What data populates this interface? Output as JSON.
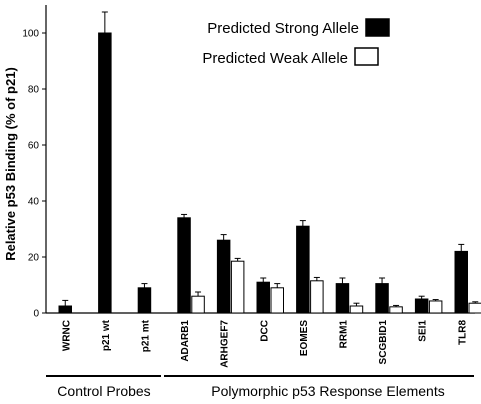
{
  "chart_data": {
    "type": "bar",
    "title": "",
    "xlabel": "",
    "ylabel": "Relative p53 Binding (% of p21)",
    "ylim": [
      0,
      110
    ],
    "yticks": [
      0,
      20,
      40,
      60,
      80,
      100
    ],
    "grid": false,
    "legend_position": "top-right",
    "categories": [
      "WRNC",
      "p21 wt",
      "p21 mt",
      "ADARB1",
      "ARHGEF7",
      "DCC",
      "EOMES",
      "RRM1",
      "SCGBID1",
      "SEI1",
      "TLR8"
    ],
    "series": [
      {
        "name": "Predicted Strong Allele",
        "color": "#000000",
        "values": [
          2.5,
          100,
          9,
          34,
          26,
          11,
          31,
          10.5,
          10.5,
          5,
          22
        ],
        "errors": [
          2,
          7.5,
          1.5,
          1.2,
          2,
          1.5,
          2,
          2,
          2,
          1,
          2.5
        ]
      },
      {
        "name": "Predicted Weak Allele",
        "color": "#ffffff",
        "values": [
          null,
          null,
          null,
          6,
          18.5,
          9,
          11.5,
          2.5,
          2.2,
          4.3,
          3.5
        ],
        "errors": [
          null,
          null,
          null,
          1.5,
          1,
          1.5,
          1.2,
          1,
          0.5,
          0.5,
          0.5
        ]
      }
    ],
    "groups": [
      {
        "label": "Control Probes",
        "categories": [
          "WRNC",
          "p21 wt",
          "p21 mt"
        ]
      },
      {
        "label": "Polymorphic p53 Response Elements",
        "categories": [
          "ADARB1",
          "ARHGEF7",
          "DCC",
          "EOMES",
          "RRM1",
          "SCGBID1",
          "SEI1",
          "TLR8"
        ]
      }
    ]
  }
}
